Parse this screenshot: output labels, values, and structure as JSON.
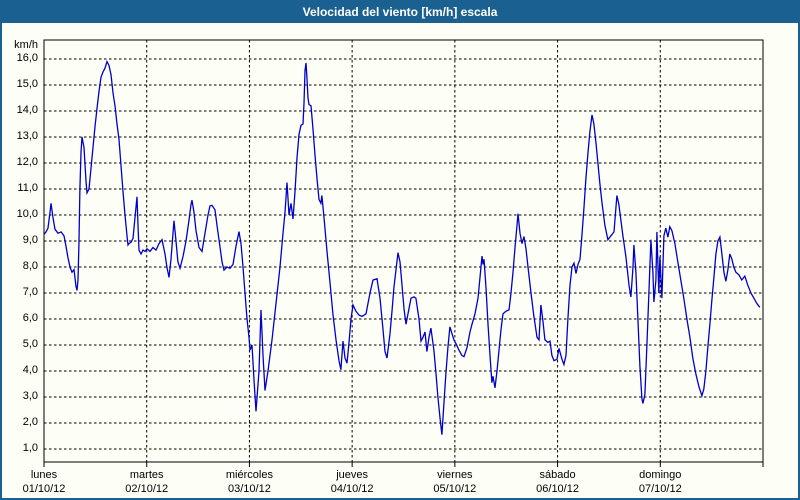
{
  "window": {
    "title": "Velocidad del viento [km/h] escala"
  },
  "colors": {
    "frame": "#1A6191",
    "titlebar_bg": "#1A6191",
    "titlebar_text": "#FFFFFF",
    "content_bg": "#FDFEF6",
    "line": "#0000CC",
    "grid": "#000000",
    "axis": "#000000"
  },
  "y_axis": {
    "unit_label": "km/h",
    "tick_labels": [
      "16,0",
      "15,0",
      "14,0",
      "13,0",
      "12,0",
      "11,0",
      "10,0",
      "9,0",
      "8,0",
      "7,0",
      "6,0",
      "5,0",
      "4,0",
      "3,0",
      "2,0",
      "1,0"
    ],
    "tick_values": [
      16,
      15,
      14,
      13,
      12,
      11,
      10,
      9,
      8,
      7,
      6,
      5,
      4,
      3,
      2,
      1
    ]
  },
  "x_axis": {
    "days": [
      {
        "name": "lunes",
        "date": "01/10/12"
      },
      {
        "name": "martes",
        "date": "02/10/12"
      },
      {
        "name": "miércoles",
        "date": "03/10/12"
      },
      {
        "name": "jueves",
        "date": "04/10/12"
      },
      {
        "name": "viernes",
        "date": "05/10/12"
      },
      {
        "name": "sábado",
        "date": "06/10/12"
      },
      {
        "name": "domingo",
        "date": "07/10/12"
      }
    ]
  },
  "chart_data": {
    "type": "line",
    "title": "Velocidad del viento [km/h] escala",
    "xlabel": "",
    "ylabel": "km/h",
    "x_units": "days (0 = lunes 01/10/12 00:00, 7 = end of domingo 07/10/12)",
    "xlim": [
      0,
      7
    ],
    "ylim": [
      0.5,
      16.75
    ],
    "grid": true,
    "legend": "none",
    "series_name": "Velocidad del viento",
    "points": [
      [
        0.0,
        9.25
      ],
      [
        0.019,
        9.35
      ],
      [
        0.039,
        9.5
      ],
      [
        0.058,
        10.1
      ],
      [
        0.068,
        10.45
      ],
      [
        0.088,
        9.9
      ],
      [
        0.107,
        9.45
      ],
      [
        0.136,
        9.3
      ],
      [
        0.166,
        9.35
      ],
      [
        0.195,
        9.2
      ],
      [
        0.214,
        8.8
      ],
      [
        0.234,
        8.35
      ],
      [
        0.253,
        8.0
      ],
      [
        0.273,
        7.8
      ],
      [
        0.292,
        7.9
      ],
      [
        0.312,
        7.25
      ],
      [
        0.321,
        7.1
      ],
      [
        0.331,
        7.5
      ],
      [
        0.341,
        9.0
      ],
      [
        0.35,
        11.0
      ],
      [
        0.36,
        12.4
      ],
      [
        0.37,
        13.0
      ],
      [
        0.389,
        12.6
      ],
      [
        0.409,
        11.3
      ],
      [
        0.419,
        10.85
      ],
      [
        0.438,
        11.0
      ],
      [
        0.458,
        11.8
      ],
      [
        0.477,
        12.6
      ],
      [
        0.497,
        13.4
      ],
      [
        0.516,
        14.1
      ],
      [
        0.535,
        14.75
      ],
      [
        0.555,
        15.3
      ],
      [
        0.574,
        15.5
      ],
      [
        0.594,
        15.65
      ],
      [
        0.613,
        15.9
      ],
      [
        0.633,
        15.75
      ],
      [
        0.652,
        15.4
      ],
      [
        0.672,
        14.7
      ],
      [
        0.691,
        14.2
      ],
      [
        0.711,
        13.5
      ],
      [
        0.73,
        12.9
      ],
      [
        0.75,
        11.9
      ],
      [
        0.769,
        10.9
      ],
      [
        0.789,
        10.0
      ],
      [
        0.808,
        9.2
      ],
      [
        0.818,
        8.85
      ],
      [
        0.827,
        8.9
      ],
      [
        0.847,
        8.95
      ],
      [
        0.866,
        9.1
      ],
      [
        0.886,
        9.9
      ],
      [
        0.905,
        10.7
      ],
      [
        0.915,
        9.6
      ],
      [
        0.925,
        8.65
      ],
      [
        0.944,
        8.5
      ],
      [
        0.964,
        8.65
      ],
      [
        0.983,
        8.6
      ],
      [
        1.003,
        8.7
      ],
      [
        1.032,
        8.6
      ],
      [
        1.061,
        8.75
      ],
      [
        1.09,
        8.65
      ],
      [
        1.12,
        8.9
      ],
      [
        1.149,
        9.05
      ],
      [
        1.178,
        8.5
      ],
      [
        1.197,
        8.0
      ],
      [
        1.217,
        7.6
      ],
      [
        1.236,
        8.3
      ],
      [
        1.256,
        9.3
      ],
      [
        1.266,
        9.78
      ],
      [
        1.285,
        9.0
      ],
      [
        1.304,
        8.2
      ],
      [
        1.324,
        7.95
      ],
      [
        1.353,
        8.4
      ],
      [
        1.382,
        9.0
      ],
      [
        1.412,
        9.8
      ],
      [
        1.431,
        10.4
      ],
      [
        1.441,
        10.57
      ],
      [
        1.46,
        10.1
      ],
      [
        1.48,
        9.4
      ],
      [
        1.509,
        8.75
      ],
      [
        1.538,
        8.6
      ],
      [
        1.567,
        9.3
      ],
      [
        1.597,
        10.0
      ],
      [
        1.616,
        10.35
      ],
      [
        1.636,
        10.37
      ],
      [
        1.665,
        10.2
      ],
      [
        1.684,
        9.6
      ],
      [
        1.713,
        8.8
      ],
      [
        1.733,
        8.2
      ],
      [
        1.752,
        7.88
      ],
      [
        1.782,
        8.0
      ],
      [
        1.811,
        7.95
      ],
      [
        1.84,
        8.1
      ],
      [
        1.869,
        8.8
      ],
      [
        1.898,
        9.36
      ],
      [
        1.918,
        8.9
      ],
      [
        1.937,
        8.0
      ],
      [
        1.957,
        7.0
      ],
      [
        1.976,
        6.0
      ],
      [
        1.996,
        5.3
      ],
      [
        2.006,
        4.8
      ],
      [
        2.025,
        5.0
      ],
      [
        2.045,
        3.6
      ],
      [
        2.064,
        2.45
      ],
      [
        2.093,
        4.0
      ],
      [
        2.113,
        6.35
      ],
      [
        2.132,
        4.6
      ],
      [
        2.152,
        3.25
      ],
      [
        2.181,
        4.0
      ],
      [
        2.22,
        5.2
      ],
      [
        2.259,
        6.6
      ],
      [
        2.298,
        8.0
      ],
      [
        2.327,
        9.3
      ],
      [
        2.346,
        10.1
      ],
      [
        2.366,
        11.25
      ],
      [
        2.385,
        10.0
      ],
      [
        2.405,
        10.45
      ],
      [
        2.424,
        9.85
      ],
      [
        2.444,
        10.9
      ],
      [
        2.463,
        12.2
      ],
      [
        2.483,
        13.1
      ],
      [
        2.502,
        13.45
      ],
      [
        2.522,
        13.5
      ],
      [
        2.531,
        14.3
      ],
      [
        2.541,
        15.55
      ],
      [
        2.551,
        15.85
      ],
      [
        2.56,
        15.3
      ],
      [
        2.57,
        14.5
      ],
      [
        2.58,
        14.25
      ],
      [
        2.599,
        14.2
      ],
      [
        2.619,
        13.3
      ],
      [
        2.638,
        12.3
      ],
      [
        2.658,
        11.4
      ],
      [
        2.677,
        10.6
      ],
      [
        2.696,
        10.45
      ],
      [
        2.706,
        10.75
      ],
      [
        2.726,
        9.9
      ],
      [
        2.755,
        8.6
      ],
      [
        2.784,
        7.4
      ],
      [
        2.813,
        6.2
      ],
      [
        2.843,
        5.2
      ],
      [
        2.872,
        4.4
      ],
      [
        2.891,
        4.05
      ],
      [
        2.911,
        5.15
      ],
      [
        2.93,
        4.5
      ],
      [
        2.95,
        4.3
      ],
      [
        2.969,
        5.1
      ],
      [
        2.989,
        6.0
      ],
      [
        3.008,
        6.54
      ],
      [
        3.037,
        6.3
      ],
      [
        3.067,
        6.15
      ],
      [
        3.096,
        6.1
      ],
      [
        3.135,
        6.2
      ],
      [
        3.174,
        7.0
      ],
      [
        3.203,
        7.5
      ],
      [
        3.242,
        7.55
      ],
      [
        3.271,
        6.8
      ],
      [
        3.3,
        5.6
      ],
      [
        3.32,
        4.75
      ],
      [
        3.339,
        4.5
      ],
      [
        3.368,
        5.4
      ],
      [
        3.388,
        6.3
      ],
      [
        3.407,
        7.2
      ],
      [
        3.427,
        7.9
      ],
      [
        3.446,
        8.55
      ],
      [
        3.466,
        8.2
      ],
      [
        3.485,
        7.3
      ],
      [
        3.505,
        6.4
      ],
      [
        3.524,
        5.8
      ],
      [
        3.544,
        6.2
      ],
      [
        3.573,
        6.8
      ],
      [
        3.602,
        6.85
      ],
      [
        3.621,
        6.8
      ],
      [
        3.651,
        6.0
      ],
      [
        3.67,
        5.15
      ],
      [
        3.69,
        5.3
      ],
      [
        3.709,
        5.5
      ],
      [
        3.728,
        4.75
      ],
      [
        3.748,
        5.3
      ],
      [
        3.767,
        5.65
      ],
      [
        3.796,
        4.8
      ],
      [
        3.816,
        3.9
      ],
      [
        3.835,
        3.0
      ],
      [
        3.855,
        2.2
      ],
      [
        3.874,
        1.55
      ],
      [
        3.894,
        2.8
      ],
      [
        3.913,
        3.9
      ],
      [
        3.932,
        4.9
      ],
      [
        3.952,
        5.7
      ],
      [
        3.971,
        5.45
      ],
      [
        3.991,
        5.2
      ],
      [
        4.011,
        5.05
      ],
      [
        4.04,
        4.8
      ],
      [
        4.069,
        4.6
      ],
      [
        4.089,
        4.55
      ],
      [
        4.118,
        4.9
      ],
      [
        4.147,
        5.5
      ],
      [
        4.167,
        5.8
      ],
      [
        4.196,
        6.2
      ],
      [
        4.225,
        6.8
      ],
      [
        4.245,
        7.6
      ],
      [
        4.264,
        8.42
      ],
      [
        4.274,
        8.1
      ],
      [
        4.284,
        8.3
      ],
      [
        4.303,
        7.2
      ],
      [
        4.323,
        5.8
      ],
      [
        4.342,
        4.6
      ],
      [
        4.361,
        3.55
      ],
      [
        4.371,
        3.8
      ],
      [
        4.391,
        3.35
      ],
      [
        4.41,
        4.0
      ],
      [
        4.43,
        4.8
      ],
      [
        4.449,
        5.6
      ],
      [
        4.469,
        6.2
      ],
      [
        4.498,
        6.3
      ],
      [
        4.527,
        6.35
      ],
      [
        4.547,
        7.0
      ],
      [
        4.566,
        7.8
      ],
      [
        4.585,
        8.7
      ],
      [
        4.605,
        9.6
      ],
      [
        4.615,
        10.05
      ],
      [
        4.634,
        9.3
      ],
      [
        4.654,
        8.9
      ],
      [
        4.673,
        9.17
      ],
      [
        4.693,
        8.7
      ],
      [
        4.712,
        8.0
      ],
      [
        4.741,
        7.0
      ],
      [
        4.77,
        6.1
      ],
      [
        4.8,
        5.3
      ],
      [
        4.819,
        5.2
      ],
      [
        4.838,
        6.54
      ],
      [
        4.858,
        5.9
      ],
      [
        4.877,
        5.2
      ],
      [
        4.906,
        5.1
      ],
      [
        4.926,
        5.15
      ],
      [
        4.945,
        4.6
      ],
      [
        4.965,
        4.4
      ],
      [
        4.994,
        4.45
      ],
      [
        5.014,
        4.87
      ],
      [
        5.043,
        4.45
      ],
      [
        5.062,
        4.25
      ],
      [
        5.082,
        4.6
      ],
      [
        5.101,
        6.0
      ],
      [
        5.121,
        7.3
      ],
      [
        5.14,
        8.0
      ],
      [
        5.16,
        8.15
      ],
      [
        5.179,
        7.75
      ],
      [
        5.199,
        8.1
      ],
      [
        5.218,
        8.3
      ],
      [
        5.237,
        9.2
      ],
      [
        5.257,
        10.3
      ],
      [
        5.276,
        11.4
      ],
      [
        5.296,
        12.4
      ],
      [
        5.315,
        13.2
      ],
      [
        5.335,
        13.85
      ],
      [
        5.354,
        13.5
      ],
      [
        5.373,
        12.8
      ],
      [
        5.393,
        12.0
      ],
      [
        5.412,
        11.2
      ],
      [
        5.432,
        10.5
      ],
      [
        5.461,
        9.6
      ],
      [
        5.49,
        9.05
      ],
      [
        5.519,
        9.2
      ],
      [
        5.549,
        9.35
      ],
      [
        5.578,
        10.75
      ],
      [
        5.597,
        10.4
      ],
      [
        5.617,
        9.8
      ],
      [
        5.636,
        9.2
      ],
      [
        5.665,
        8.4
      ],
      [
        5.695,
        7.3
      ],
      [
        5.714,
        6.85
      ],
      [
        5.734,
        8.0
      ],
      [
        5.743,
        8.85
      ],
      [
        5.763,
        7.8
      ],
      [
        5.782,
        6.0
      ],
      [
        5.802,
        4.2
      ],
      [
        5.821,
        2.95
      ],
      [
        5.831,
        2.75
      ],
      [
        5.85,
        3.1
      ],
      [
        5.87,
        5.0
      ],
      [
        5.889,
        7.0
      ],
      [
        5.909,
        9.05
      ],
      [
        5.928,
        7.8
      ],
      [
        5.938,
        6.65
      ],
      [
        5.957,
        7.5
      ],
      [
        5.967,
        9.35
      ],
      [
        5.986,
        7.0
      ],
      [
        5.996,
        8.4
      ],
      [
        6.016,
        6.8
      ],
      [
        6.035,
        9.2
      ],
      [
        6.054,
        9.5
      ],
      [
        6.074,
        9.15
      ],
      [
        6.093,
        9.55
      ],
      [
        6.113,
        9.4
      ],
      [
        6.142,
        8.9
      ],
      [
        6.171,
        8.2
      ],
      [
        6.2,
        7.5
      ],
      [
        6.229,
        6.8
      ],
      [
        6.259,
        6.0
      ],
      [
        6.288,
        5.3
      ],
      [
        6.317,
        4.5
      ],
      [
        6.346,
        3.9
      ],
      [
        6.376,
        3.4
      ],
      [
        6.405,
        3.05
      ],
      [
        6.424,
        3.3
      ],
      [
        6.444,
        4.0
      ],
      [
        6.463,
        4.9
      ],
      [
        6.483,
        5.8
      ],
      [
        6.502,
        6.7
      ],
      [
        6.522,
        7.6
      ],
      [
        6.541,
        8.5
      ],
      [
        6.561,
        9.0
      ],
      [
        6.58,
        9.15
      ],
      [
        6.6,
        8.5
      ],
      [
        6.619,
        7.8
      ],
      [
        6.639,
        7.45
      ],
      [
        6.658,
        7.9
      ],
      [
        6.677,
        8.5
      ],
      [
        6.697,
        8.3
      ],
      [
        6.716,
        8.0
      ],
      [
        6.736,
        7.8
      ],
      [
        6.765,
        7.7
      ],
      [
        6.794,
        7.5
      ],
      [
        6.823,
        7.65
      ],
      [
        6.852,
        7.3
      ],
      [
        6.882,
        7.0
      ],
      [
        6.911,
        6.8
      ],
      [
        6.94,
        6.6
      ],
      [
        6.969,
        6.45
      ]
    ]
  }
}
